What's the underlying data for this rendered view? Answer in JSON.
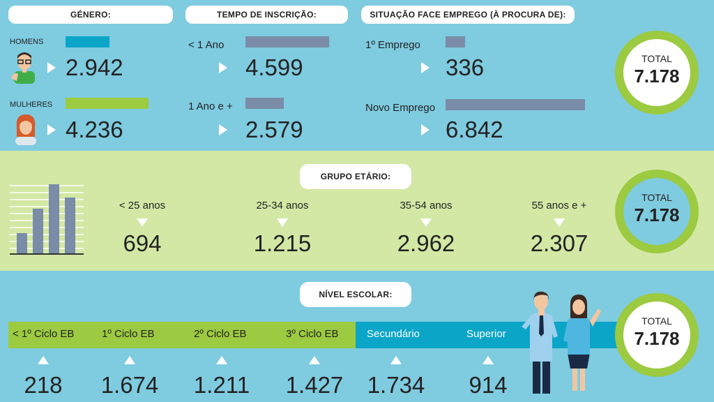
{
  "colors": {
    "blue": "#7fcbe0",
    "green": "#9cca41",
    "teal": "#0ba5c8",
    "slate": "#7a8ca7",
    "lightgreen": "#d3e8a5"
  },
  "genero": {
    "title": "GÉNERO:",
    "homens": {
      "label": "HOMENS",
      "value": "2.942"
    },
    "mulheres": {
      "label": "MULHERES",
      "value": "4.236"
    }
  },
  "tempo": {
    "title": "TEMPO DE INSCRIÇÃO:",
    "a": {
      "label": "< 1 Ano",
      "value": "4.599"
    },
    "b": {
      "label": "1 Ano e +",
      "value": "2.579"
    }
  },
  "situacao": {
    "title": "SITUAÇÃO FACE EMPREGO (À PROCURA DE):",
    "a": {
      "label": "1º Emprego",
      "value": "336"
    },
    "b": {
      "label": "Novo Emprego",
      "value": "6.842"
    }
  },
  "total": {
    "label": "TOTAL",
    "value": "7.178"
  },
  "grupo": {
    "title": "GRUPO ETÁRIO:",
    "items": [
      {
        "label": "< 25 anos",
        "value": "694"
      },
      {
        "label": "25-34 anos",
        "value": "1.215"
      },
      {
        "label": "35-54 anos",
        "value": "2.962"
      },
      {
        "label": "55 anos e +",
        "value": "2.307"
      }
    ]
  },
  "nivel": {
    "title": "NÍVEL ESCOLAR:",
    "items": [
      {
        "label": "< 1º Ciclo EB",
        "value": "218"
      },
      {
        "label": "1º Ciclo EB",
        "value": "1.674"
      },
      {
        "label": "2º Ciclo EB",
        "value": "1.211"
      },
      {
        "label": "3º Ciclo EB",
        "value": "1.427"
      },
      {
        "label": "Secundário",
        "value": "1.734"
      },
      {
        "label": "Superior",
        "value": "914"
      }
    ]
  }
}
